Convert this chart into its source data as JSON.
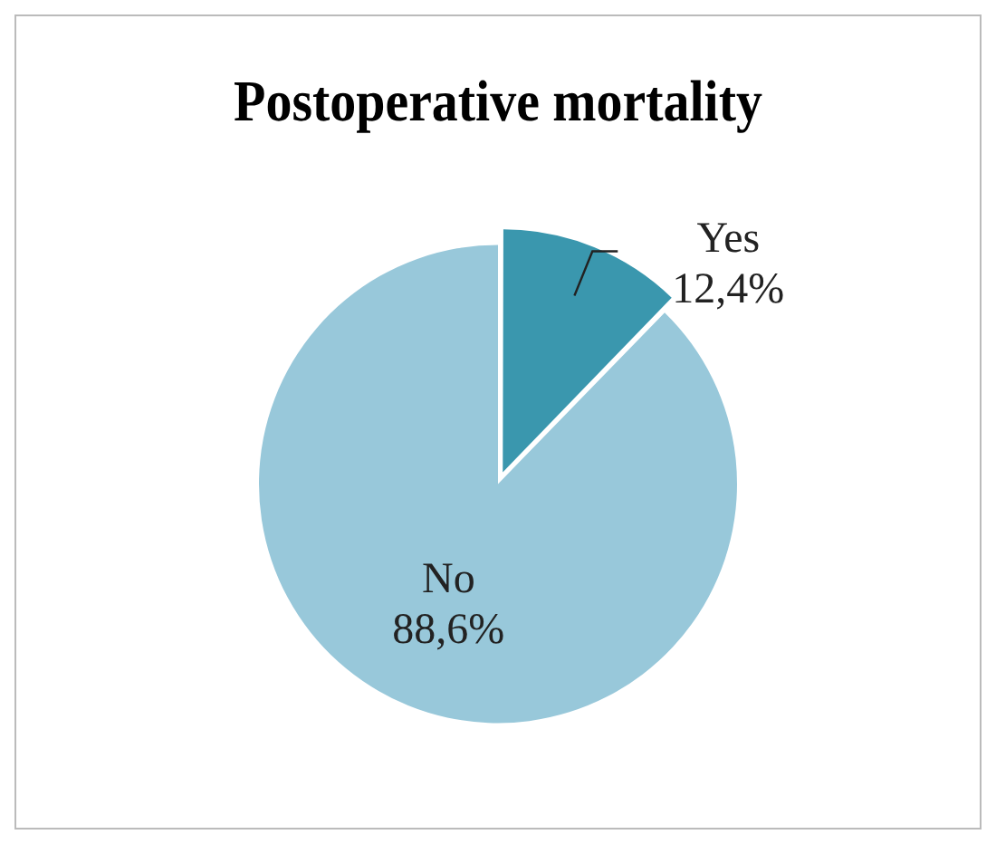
{
  "chart_data": {
    "type": "pie",
    "title": "Postoperative mortality",
    "categories": [
      "Yes",
      "No"
    ],
    "values": [
      12.4,
      88.6
    ],
    "colors": [
      "#3a97ae",
      "#98c8da"
    ],
    "value_labels": [
      "12,4%",
      "88,6%"
    ],
    "legend": false
  }
}
